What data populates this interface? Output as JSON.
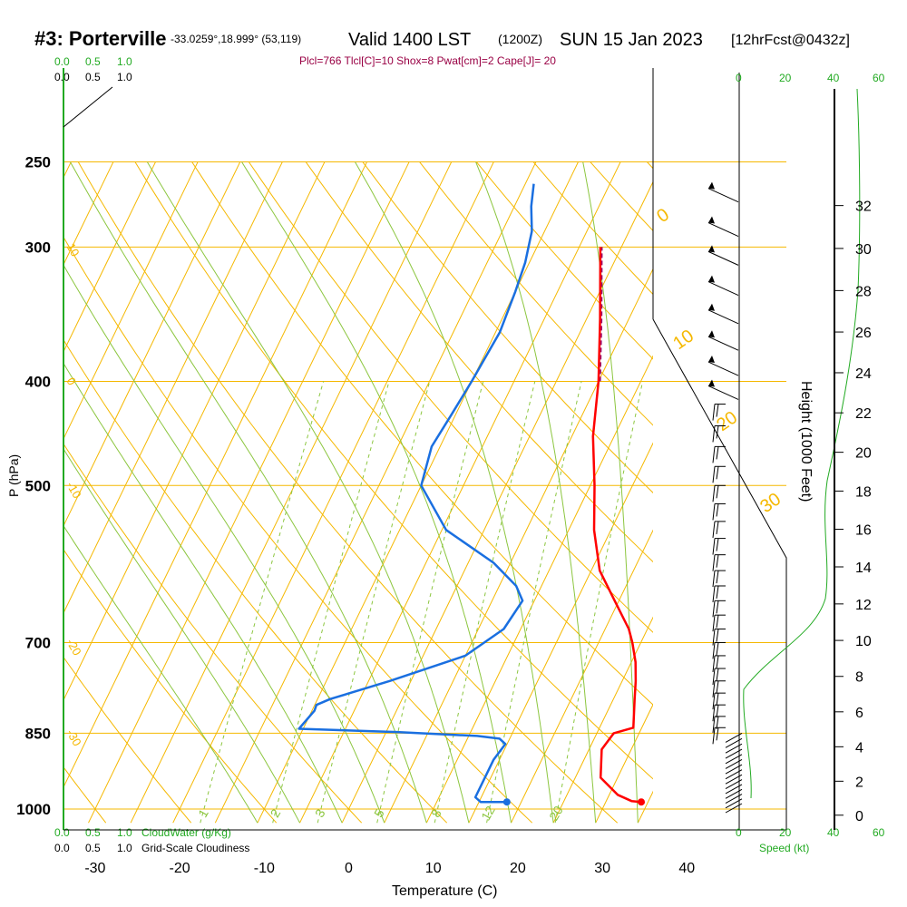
{
  "header": {
    "station": "#3: Porterville",
    "coords": "-33.0259°,18.999° (53,119)",
    "valid": "Valid 1400 LST",
    "utc": "(1200Z)",
    "date": "SUN 15 Jan 2023",
    "forecast": "[12hrFcst@0432z]",
    "indices": "Plcl=766 Tlcl[C]=10 Shox=8 Pwat[cm]=2 Cape[J]= 20"
  },
  "axes": {
    "xlabel": "Temperature (C)",
    "ylabel": "P (hPa)",
    "height_label": "Height (1000 Feet)",
    "speed_label": "Speed (kt)",
    "cloudwater_label": "CloudWater (g/Kg)",
    "cloudiness_label": "Grid-Scale Cloudiness",
    "cw_ticks": [
      "0.0",
      "0.5",
      "1.0"
    ],
    "cloud_ticks": [
      "0.0",
      "0.5",
      "1.0"
    ],
    "speed_ticks": [
      "0",
      "20",
      "40",
      "60"
    ]
  },
  "colors": {
    "isobar": "#f5b800",
    "isotherm": "#f5b800",
    "dry_adiabat": "#f5b800",
    "moist_adiabat": "#8cc63f",
    "mixing_ratio": "#8cc63f",
    "temperature": "#ff0000",
    "dewpoint": "#1a6fe0",
    "green_text": "#22aa22",
    "indices_text": "#990044",
    "parcel": "#990066"
  },
  "chart_data": {
    "type": "line",
    "title": "#3: Porterville Valid 1400 LST SUN 15 Jan 2023",
    "xlabel": "Temperature (C)",
    "ylabel": "P (hPa)",
    "x_ticks": [
      -30,
      -20,
      -10,
      0,
      10,
      20,
      30,
      40
    ],
    "pressure_ticks": [
      250,
      300,
      400,
      500,
      700,
      850,
      1000
    ],
    "xlim": [
      -34,
      45
    ],
    "ylim": [
      1030,
      250
    ],
    "log_scale_y": true,
    "height_kft_ticks": [
      0,
      2,
      4,
      6,
      8,
      10,
      12,
      14,
      16,
      18,
      20,
      22,
      24,
      26,
      28,
      30,
      32
    ],
    "isotherm_labels": [
      -30,
      -20,
      -10,
      0,
      10,
      20,
      30
    ],
    "dry_adiabat_labels": [
      "30",
      "20",
      "10",
      "0",
      "-10",
      "-20",
      "-30"
    ],
    "mixing_ratio_labels": [
      "1",
      "2",
      "3",
      "5",
      "8",
      "12",
      "20"
    ],
    "series": [
      {
        "name": "Temperature",
        "color": "#ff0000",
        "x": [
          34.2,
          33.0,
          31.0,
          28.0,
          26.5,
          27.0,
          29.0,
          27.5,
          26.6,
          25.5,
          24.0,
          22.8,
          19.5,
          16.0,
          13.0,
          10.5,
          7.5,
          5.0,
          1.6,
          -2.5
        ],
        "y": [
          985,
          983,
          970,
          935,
          880,
          850,
          840,
          790,
          760,
          730,
          700,
          680,
          640,
          600,
          550,
          500,
          450,
          400,
          350,
          300
        ]
      },
      {
        "name": "Dewpoint",
        "color": "#1a6fe0",
        "x": [
          18.3,
          15.2,
          14.3,
          14.3,
          14.8,
          13.8,
          11.0,
          1.3,
          -10.5,
          -9.7,
          -9.8,
          -8.5,
          -2.5,
          5.0,
          8.0,
          8.6,
          7.0,
          3.0,
          -4.5,
          -10.0,
          -11.0,
          -10.5,
          -10.0,
          -9.5,
          -10.0,
          -10.5,
          -11.5,
          -13.0,
          -14.0
        ],
        "y": [
          985,
          985,
          975,
          900,
          870,
          860,
          855,
          848,
          842,
          810,
          800,
          790,
          760,
          720,
          680,
          640,
          620,
          590,
          550,
          500,
          460,
          430,
          400,
          360,
          330,
          310,
          290,
          275,
          262
        ]
      }
    ]
  }
}
